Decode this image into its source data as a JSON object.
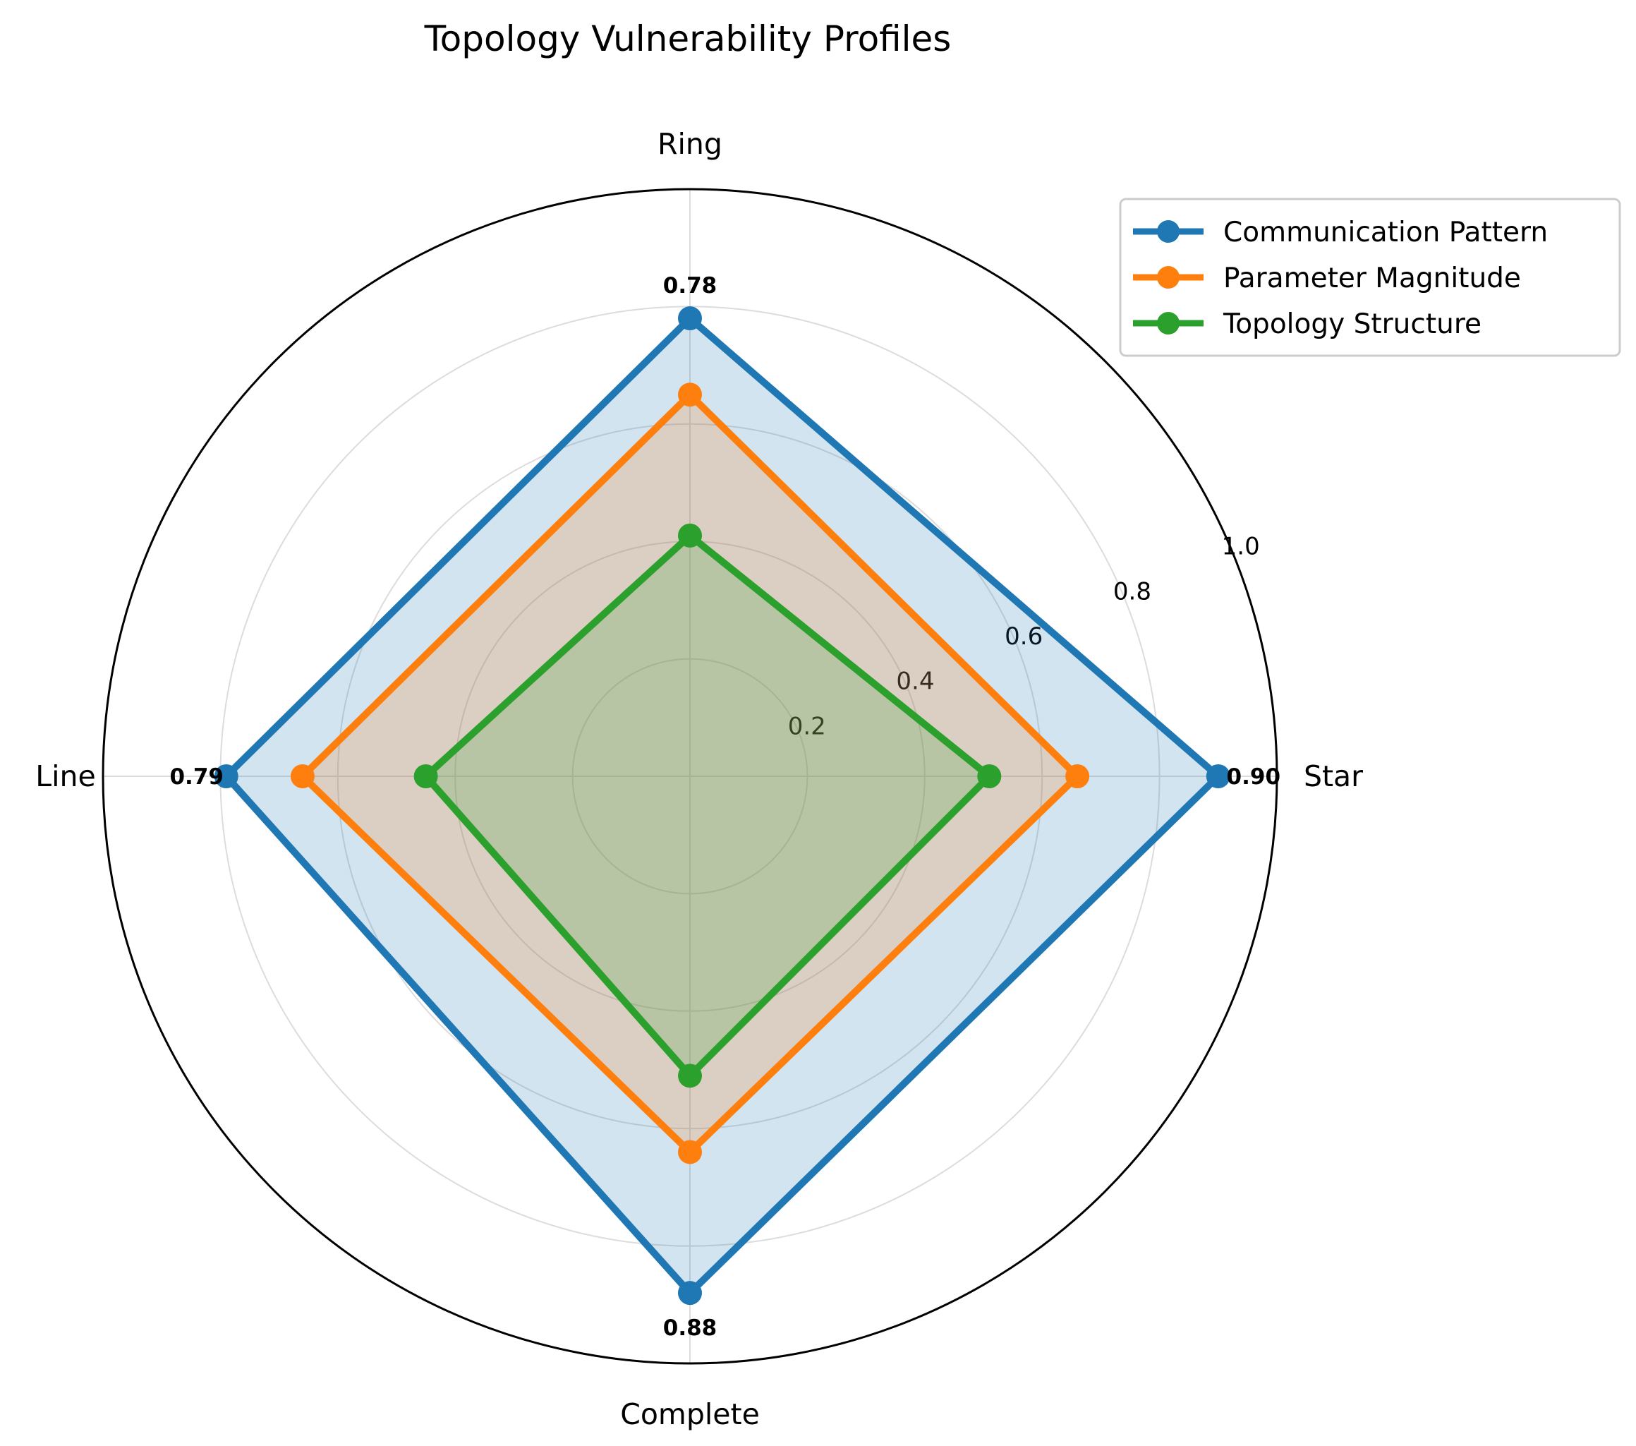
{
  "chart_data": {
    "type": "radar",
    "title": "Topology Vulnerability Profiles",
    "categories": [
      "Star",
      "Ring",
      "Line",
      "Complete"
    ],
    "radial_ticks": [
      "0.2",
      "0.4",
      "0.6",
      "0.8",
      "1.0"
    ],
    "rlim": [
      0,
      1.0
    ],
    "grid": true,
    "legend_position": "top-right",
    "series": [
      {
        "name": "Communication Pattern",
        "values": [
          0.9,
          0.78,
          0.79,
          0.88
        ],
        "color": "#1f77b4",
        "value_labels": [
          "0.90",
          "0.78",
          "0.79",
          "0.88"
        ]
      },
      {
        "name": "Parameter Magnitude",
        "values": [
          0.66,
          0.65,
          0.66,
          0.64
        ],
        "color": "#ff7f0e"
      },
      {
        "name": "Topology Structure",
        "values": [
          0.51,
          0.41,
          0.45,
          0.51
        ],
        "color": "#2ca02c"
      }
    ]
  }
}
